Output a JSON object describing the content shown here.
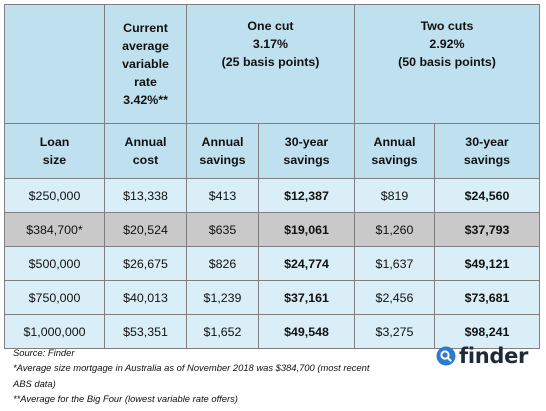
{
  "table": {
    "columns": {
      "current": [
        "Current",
        "average",
        "variable",
        "rate",
        "3.42%**"
      ],
      "one_cut": [
        "One cut",
        "3.17%",
        "(25 basis points)"
      ],
      "two_cuts": [
        "Two cuts",
        "2.92%",
        "(50 basis points)"
      ]
    },
    "subheaders": {
      "loan_size": [
        "Loan",
        "size"
      ],
      "annual_cost": [
        "Annual",
        "cost"
      ],
      "annual_savings_1": [
        "Annual",
        "savings"
      ],
      "savings_30y_1": [
        "30-year",
        "savings"
      ],
      "annual_savings_2": [
        "Annual",
        "savings"
      ],
      "savings_30y_2": [
        "30-year",
        "savings"
      ]
    },
    "rows": [
      {
        "loan": "$250,000",
        "annual_cost": "$13,338",
        "savings1": "$413",
        "savings30_1": "$12,387",
        "savings2": "$819",
        "savings30_2": "$24,560"
      },
      {
        "loan": "$384,700*",
        "annual_cost": "$20,524",
        "savings1": "$635",
        "savings30_1": "$19,061",
        "savings2": "$1,260",
        "savings30_2": "$37,793"
      },
      {
        "loan": "$500,000",
        "annual_cost": "$26,675",
        "savings1": "$826",
        "savings30_1": "$24,774",
        "savings2": "$1,637",
        "savings30_2": "$49,121"
      },
      {
        "loan": "$750,000",
        "annual_cost": "$40,013",
        "savings1": "$1,239",
        "savings30_1": "$37,161",
        "savings2": "$2,456",
        "savings30_2": "$73,681"
      },
      {
        "loan": "$1,000,000",
        "annual_cost": "$53,351",
        "savings1": "$1,652",
        "savings30_1": "$49,548",
        "savings2": "$3,275",
        "savings30_2": "$98,241"
      }
    ]
  },
  "footer": {
    "source": "Source: Finder",
    "note1_line1": "*Average size mortgage in Australia as of November 2018 was $384,700 (most recent",
    "note1_line2": "ABS data)",
    "note2": "**Average for the Big Four (lowest variable rate offers)"
  },
  "logo": {
    "text": "finder",
    "icon": "finder-logo-icon",
    "color": "#2e7ad0"
  },
  "colors": {
    "header_bg": "#bfe0ee",
    "row_bg": "#d9eef6",
    "highlight_row_bg": "#c9c9c9",
    "border": "#7f7f7f"
  }
}
